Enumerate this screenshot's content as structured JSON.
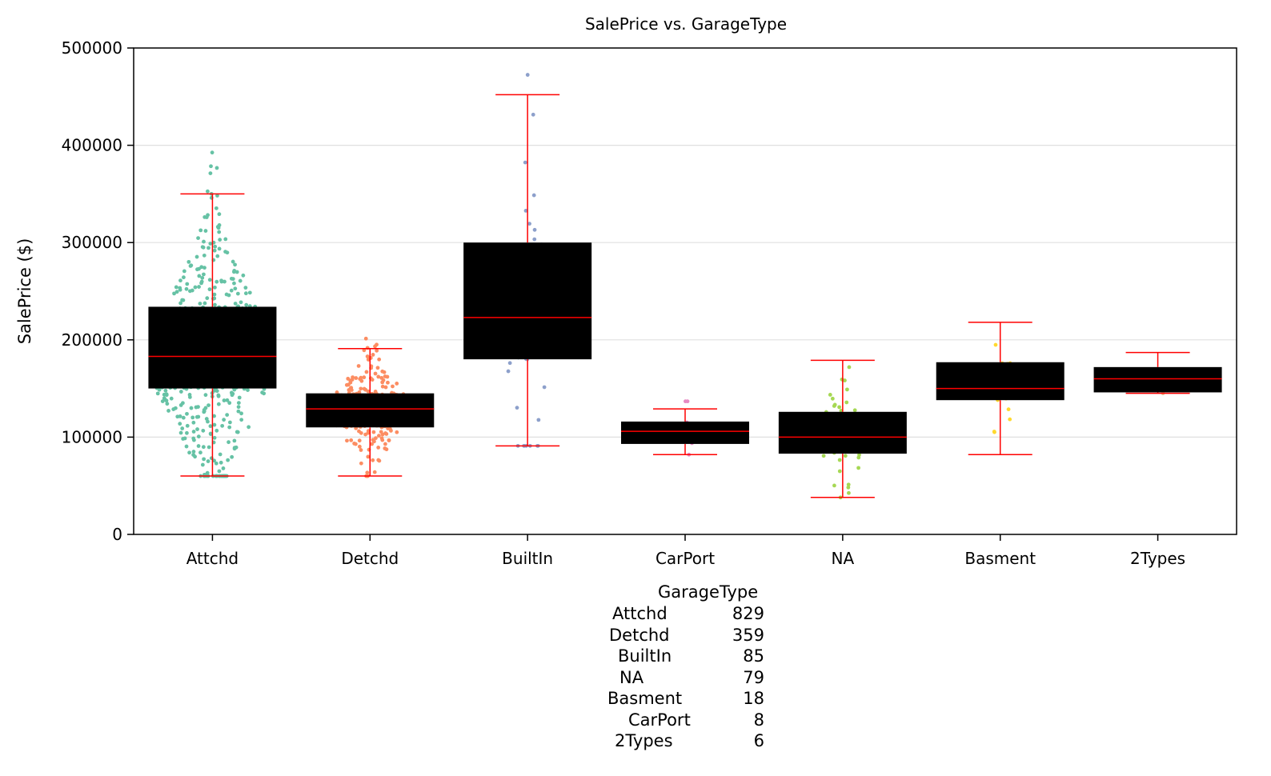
{
  "chart_data": {
    "type": "box",
    "title": "SalePrice vs. GarageType",
    "xlabel": "",
    "ylabel": "SalePrice ($)",
    "ylim": [
      0,
      500000
    ],
    "yticks": [
      "0",
      "100000",
      "200000",
      "300000",
      "400000",
      "500000"
    ],
    "grid": "horizontal",
    "categories": [
      "Attchd",
      "Detchd",
      "BuiltIn",
      "CarPort",
      "NA",
      "Basment",
      "2Types"
    ],
    "boxes": [
      {
        "category": "Attchd",
        "whisker_low": 60000,
        "q1": 150000,
        "median": 183000,
        "q3": 234000,
        "whisker_high": 350000,
        "color": "#66c2a5",
        "points": 829
      },
      {
        "category": "Detchd",
        "whisker_low": 60000,
        "q1": 110000,
        "median": 129000,
        "q3": 145000,
        "whisker_high": 191000,
        "color": "#fc8d62",
        "points": 359
      },
      {
        "category": "BuiltIn",
        "whisker_low": 91000,
        "q1": 180000,
        "median": 223000,
        "q3": 300000,
        "whisker_high": 452000,
        "color": "#8da0cb",
        "points": 85
      },
      {
        "category": "CarPort",
        "whisker_low": 82000,
        "q1": 93000,
        "median": 106000,
        "q3": 116000,
        "whisker_high": 129000,
        "color": "#e78ac3",
        "points": 8
      },
      {
        "category": "NA",
        "whisker_low": 38000,
        "q1": 83000,
        "median": 100000,
        "q3": 126000,
        "whisker_high": 179000,
        "color": "#a6d854",
        "points": 79
      },
      {
        "category": "Basment",
        "whisker_low": 82000,
        "q1": 138000,
        "median": 150000,
        "q3": 177000,
        "whisker_high": 218000,
        "color": "#ffd92f",
        "points": 18
      },
      {
        "category": "2Types",
        "whisker_low": 145000,
        "q1": 146000,
        "median": 160000,
        "q3": 172000,
        "whisker_high": 187000,
        "color": "#e5c494",
        "points": 6
      }
    ]
  },
  "value_counts": {
    "header": "GarageType",
    "rows": [
      {
        "name": "Attchd",
        "count": "829"
      },
      {
        "name": "Detchd",
        "count": "359"
      },
      {
        "name": "BuiltIn",
        "count": "85"
      },
      {
        "name": "NA",
        "count": "79"
      },
      {
        "name": "Basment",
        "count": "18"
      },
      {
        "name": "CarPort",
        "count": "8"
      },
      {
        "name": "2Types",
        "count": "6"
      }
    ]
  }
}
